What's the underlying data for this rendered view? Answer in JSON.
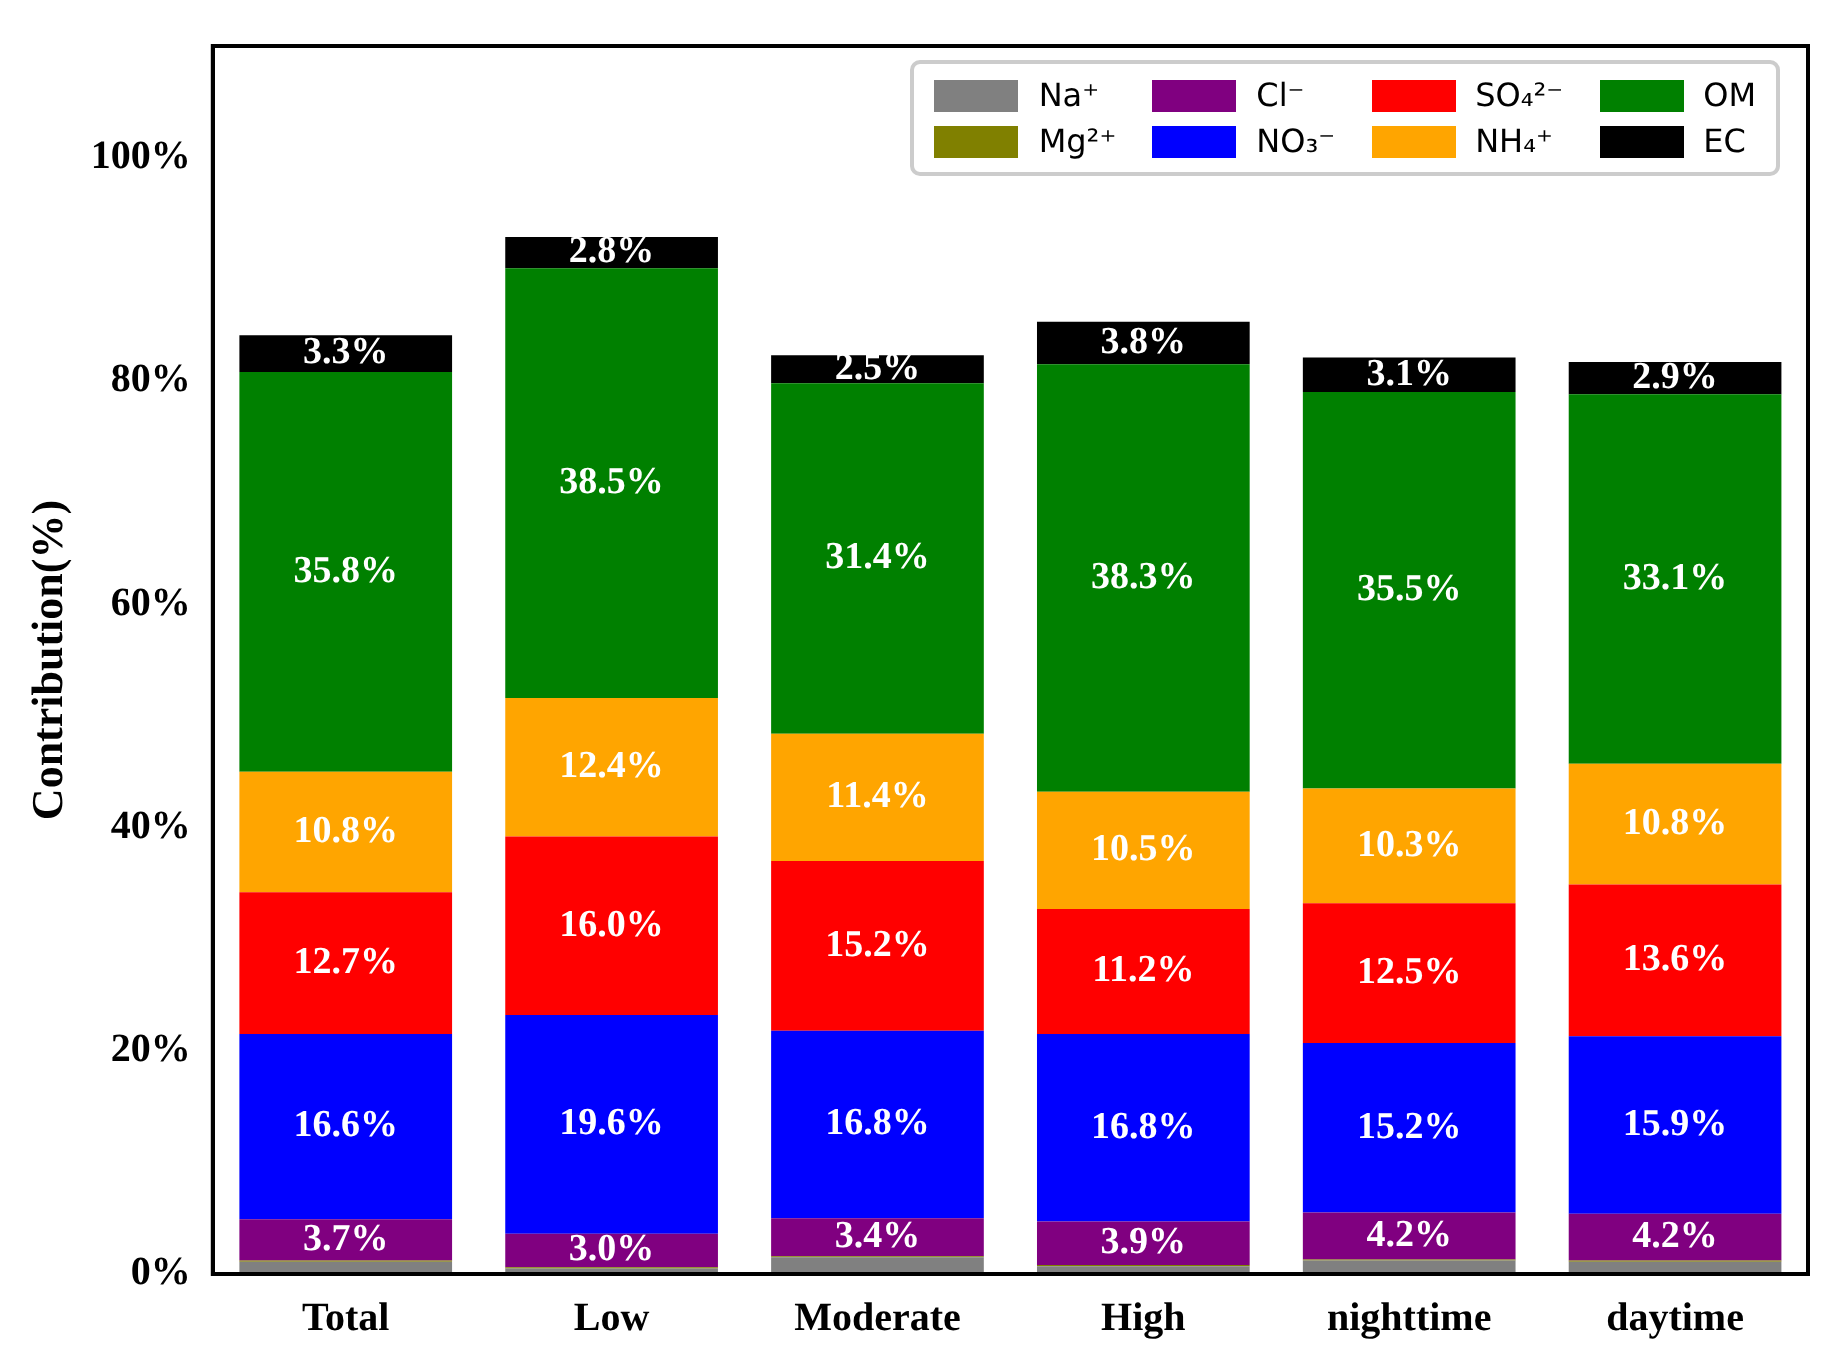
{
  "chart_data": {
    "type": "bar",
    "stacked": true,
    "ylabel": "Contribution(%)",
    "categories": [
      "Total",
      "Low",
      "Moderate",
      "High",
      "nighttime",
      "daytime"
    ],
    "ylim": [
      0,
      110
    ],
    "yticks": [
      {
        "value": 0,
        "label": "0%"
      },
      {
        "value": 20,
        "label": "20%"
      },
      {
        "value": 40,
        "label": "40%"
      },
      {
        "value": 60,
        "label": "60%"
      },
      {
        "value": 80,
        "label": "80%"
      },
      {
        "value": 100,
        "label": "100%"
      }
    ],
    "grid": false,
    "legend": "top right",
    "series": [
      {
        "name": "Na⁺",
        "color": "#808080",
        "values": [
          1.1,
          0.5,
          1.5,
          0.7,
          1.2,
          1.1
        ],
        "value_labels": [
          null,
          null,
          null,
          null,
          null,
          null
        ]
      },
      {
        "name": "Mg²⁺",
        "color": "#808000",
        "values": [
          0.1,
          0.1,
          0.1,
          0.1,
          0.1,
          0.1
        ],
        "value_labels": [
          null,
          null,
          null,
          null,
          null,
          null
        ]
      },
      {
        "name": "Cl⁻",
        "color": "#800080",
        "values": [
          3.7,
          3.0,
          3.4,
          3.9,
          4.2,
          4.2
        ],
        "value_labels": [
          "3.7%",
          "3.0%",
          "3.4%",
          "3.9%",
          "4.2%",
          "4.2%"
        ]
      },
      {
        "name": "NO₃⁻",
        "color": "#0000ff",
        "values": [
          16.6,
          19.6,
          16.8,
          16.8,
          15.2,
          15.9
        ],
        "value_labels": [
          "16.6%",
          "19.6%",
          "16.8%",
          "16.8%",
          "15.2%",
          "15.9%"
        ]
      },
      {
        "name": "SO₄²⁻",
        "color": "#ff0000",
        "values": [
          12.7,
          16.0,
          15.2,
          11.2,
          12.5,
          13.6
        ],
        "value_labels": [
          "12.7%",
          "16.0%",
          "15.2%",
          "11.2%",
          "12.5%",
          "13.6%"
        ]
      },
      {
        "name": "NH₄⁺",
        "color": "#ffa500",
        "values": [
          10.8,
          12.4,
          11.4,
          10.5,
          10.3,
          10.8
        ],
        "value_labels": [
          "10.8%",
          "12.4%",
          "11.4%",
          "10.5%",
          "10.3%",
          "10.8%"
        ]
      },
      {
        "name": "OM",
        "color": "#008000",
        "values": [
          35.8,
          38.5,
          31.4,
          38.3,
          35.5,
          33.1
        ],
        "value_labels": [
          "35.8%",
          "38.5%",
          "31.4%",
          "38.3%",
          "35.5%",
          "33.1%"
        ]
      },
      {
        "name": "EC",
        "color": "#000000",
        "values": [
          3.3,
          2.8,
          2.5,
          3.8,
          3.1,
          2.9
        ],
        "value_labels": [
          "3.3%",
          "2.8%",
          "2.5%",
          "3.8%",
          "3.1%",
          "2.9%"
        ]
      }
    ]
  }
}
